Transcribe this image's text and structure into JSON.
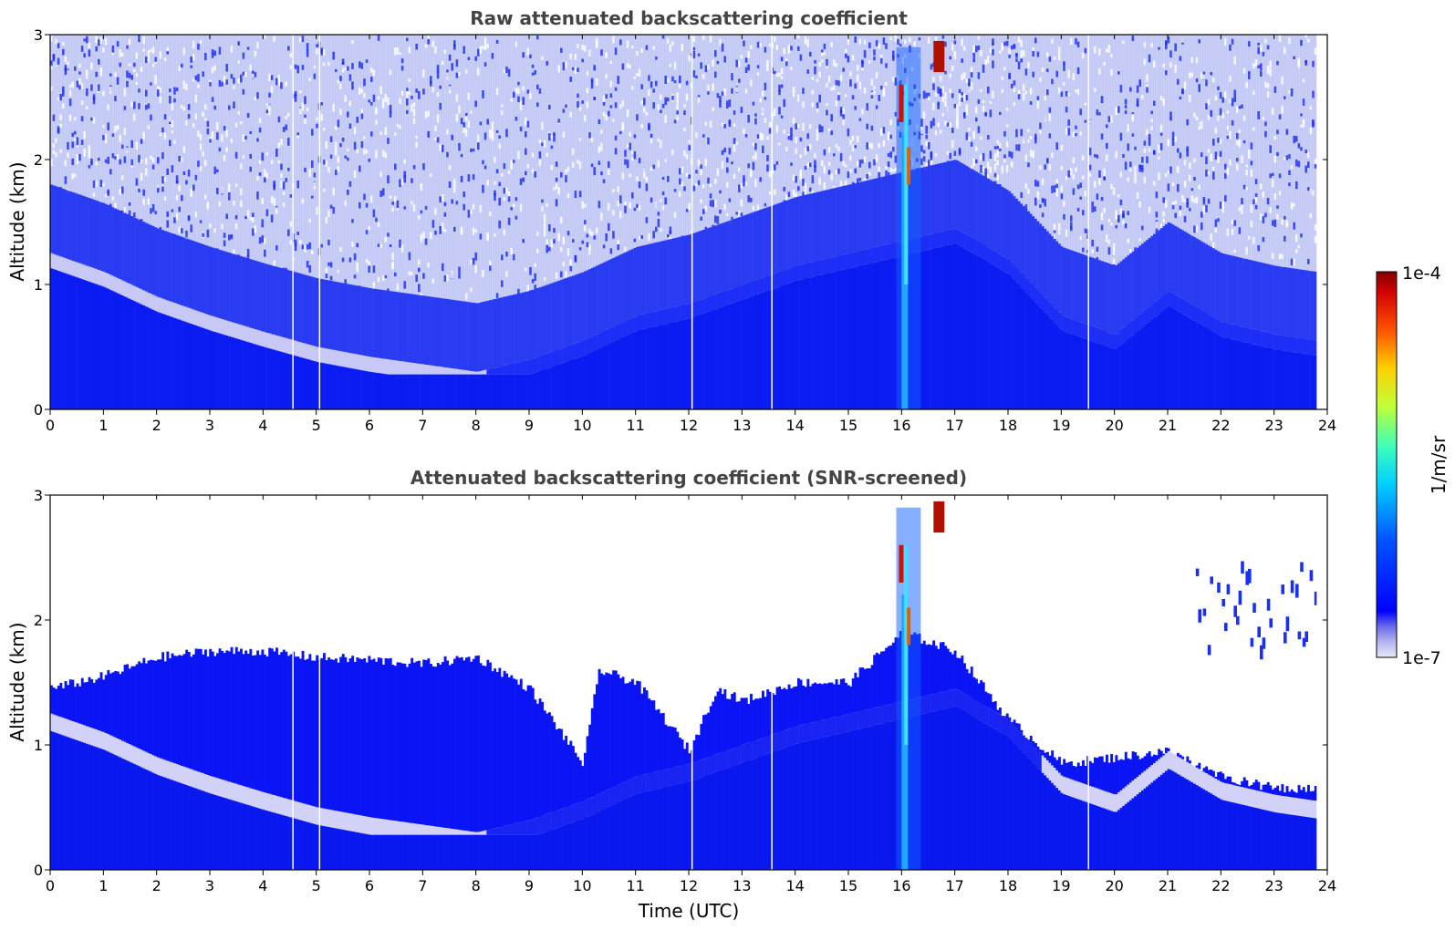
{
  "chart_data": [
    {
      "type": "heatmap",
      "title": "Raw attenuated backscattering coefficient",
      "xlabel": "",
      "ylabel": "Altitude (km)",
      "xlim": [
        0,
        24
      ],
      "ylim": [
        0,
        3
      ],
      "xticks": [
        "0",
        "1",
        "2",
        "3",
        "4",
        "5",
        "6",
        "7",
        "8",
        "9",
        "10",
        "11",
        "12",
        "13",
        "14",
        "15",
        "16",
        "17",
        "18",
        "19",
        "20",
        "21",
        "22",
        "23",
        "24"
      ],
      "yticks": [
        "0",
        "1",
        "2",
        "3"
      ],
      "data_gaps_utc": [
        4.55,
        5.05,
        12.05,
        13.55,
        19.5
      ],
      "features": {
        "aerosol_layer_top_km": [
          [
            0,
            1.25
          ],
          [
            1,
            1.1
          ],
          [
            2,
            0.9
          ],
          [
            3,
            0.75
          ],
          [
            4,
            0.62
          ],
          [
            5,
            0.5
          ],
          [
            6,
            0.42
          ],
          [
            7,
            0.36
          ],
          [
            8,
            0.3
          ],
          [
            9,
            0.4
          ],
          [
            10,
            0.55
          ],
          [
            11,
            0.75
          ],
          [
            12,
            0.85
          ],
          [
            13,
            1.0
          ],
          [
            14,
            1.15
          ],
          [
            15,
            1.25
          ],
          [
            16,
            1.35
          ],
          [
            17,
            1.45
          ],
          [
            18,
            1.2
          ],
          [
            19,
            0.75
          ],
          [
            20,
            0.6
          ],
          [
            21,
            0.95
          ],
          [
            22,
            0.7
          ],
          [
            23,
            0.6
          ],
          [
            23.8,
            0.55
          ]
        ],
        "cloud_column_utc": [
          15.9,
          16.6
        ],
        "cloud_top_km": 3.0
      }
    },
    {
      "type": "heatmap",
      "title": "Attenuated backscattering coefficient (SNR-screened)",
      "xlabel": "Time (UTC)",
      "ylabel": "Altitude (km)",
      "xlim": [
        0,
        24
      ],
      "ylim": [
        0,
        3
      ],
      "xticks": [
        "0",
        "1",
        "2",
        "3",
        "4",
        "5",
        "6",
        "7",
        "8",
        "9",
        "10",
        "11",
        "12",
        "13",
        "14",
        "15",
        "16",
        "17",
        "18",
        "19",
        "20",
        "21",
        "22",
        "23",
        "24"
      ],
      "yticks": [
        "0",
        "1",
        "2",
        "3"
      ],
      "data_gaps_utc": [
        4.55,
        5.05,
        12.05,
        13.55,
        19.5
      ],
      "features": {
        "screened_layer_top_km": [
          [
            0,
            1.45
          ],
          [
            1,
            1.55
          ],
          [
            2,
            1.7
          ],
          [
            3,
            1.75
          ],
          [
            4,
            1.75
          ],
          [
            5,
            1.7
          ],
          [
            6,
            1.68
          ],
          [
            7,
            1.65
          ],
          [
            8,
            1.7
          ],
          [
            9,
            1.45
          ],
          [
            10,
            0.85
          ],
          [
            10.3,
            1.6
          ],
          [
            11,
            1.5
          ],
          [
            12,
            0.95
          ],
          [
            12.5,
            1.45
          ],
          [
            13,
            1.35
          ],
          [
            14,
            1.5
          ],
          [
            15,
            1.5
          ],
          [
            16,
            1.9
          ],
          [
            17,
            1.75
          ],
          [
            18,
            1.2
          ],
          [
            19,
            0.85
          ],
          [
            20,
            0.9
          ],
          [
            21,
            0.95
          ],
          [
            22,
            0.75
          ],
          [
            23,
            0.65
          ],
          [
            23.8,
            0.65
          ]
        ],
        "aerosol_layer_top_km": [
          [
            0,
            1.25
          ],
          [
            1,
            1.1
          ],
          [
            2,
            0.9
          ],
          [
            3,
            0.75
          ],
          [
            4,
            0.62
          ],
          [
            5,
            0.5
          ],
          [
            6,
            0.42
          ],
          [
            7,
            0.36
          ],
          [
            8,
            0.3
          ],
          [
            9,
            0.4
          ],
          [
            10,
            0.55
          ],
          [
            11,
            0.75
          ],
          [
            12,
            0.85
          ],
          [
            13,
            1.0
          ],
          [
            14,
            1.15
          ],
          [
            15,
            1.25
          ],
          [
            16,
            1.35
          ],
          [
            17,
            1.45
          ],
          [
            18,
            1.2
          ],
          [
            19,
            0.75
          ],
          [
            20,
            0.6
          ],
          [
            21,
            0.95
          ],
          [
            22,
            0.7
          ],
          [
            23,
            0.6
          ],
          [
            23.8,
            0.55
          ]
        ],
        "upper_layer_utc": [
          21.5,
          23.8
        ],
        "upper_layer_km": [
          1.7,
          2.4
        ],
        "cloud_column_utc": [
          15.9,
          16.6
        ],
        "cloud_top_km": 3.0
      }
    }
  ],
  "colorbar": {
    "label": "1/m/sr",
    "max_label": "1e-4",
    "min_label": "1e-7",
    "scale": "log",
    "range": [
      1e-07,
      0.0001
    ],
    "colormap": "jet",
    "low_colors": [
      "#e8e8fa",
      "#c8c8f4",
      "#9a9aee",
      "#6666e8",
      "#1a1aec",
      "#0000ff"
    ]
  }
}
